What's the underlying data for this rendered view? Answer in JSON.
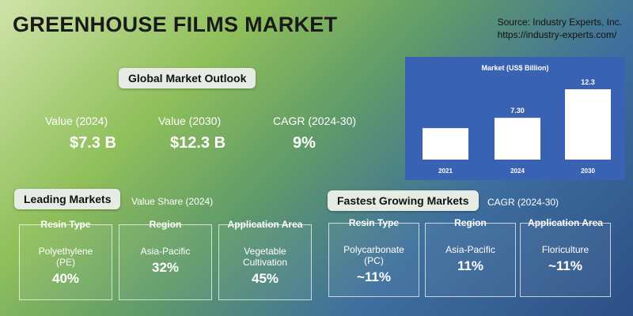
{
  "header": {
    "title": "GREENHOUSE FILMS MARKET",
    "source": "Source: Industry Experts, Inc.",
    "url": "https://industry-experts.com/"
  },
  "outlook": {
    "title": "Global Market Outlook",
    "items": [
      {
        "label": "Value (2024)",
        "value": "$7.3 B"
      },
      {
        "label": "Value (2030)",
        "value": "$12.3 B"
      },
      {
        "label": "CAGR (2024-30)",
        "value": "9%"
      }
    ]
  },
  "chart_data": {
    "type": "bar",
    "title": "Market (US$ Billion)",
    "categories": [
      "2021",
      "2024",
      "2030"
    ],
    "values": [
      5.5,
      7.3,
      12.3
    ],
    "value_labels": [
      null,
      "7.30",
      "12.3"
    ],
    "color": "#ffffff"
  },
  "leading": {
    "title": "Leading Markets",
    "subtitle": "Value Share (2024)",
    "cards": [
      {
        "heading": "Resin Type",
        "name": "Polyethylene (PE)",
        "value": "40%"
      },
      {
        "heading": "Region",
        "name": "Asia-Pacific",
        "value": "32%"
      },
      {
        "heading": "Application Area",
        "name": "Vegetable Cultivation",
        "value": "45%"
      }
    ]
  },
  "fastest": {
    "title": "Fastest Growing Markets",
    "subtitle": "CAGR (2024-30)",
    "cards": [
      {
        "heading": "Resin Type",
        "name": "Polycarbonate (PC)",
        "value": "~11%"
      },
      {
        "heading": "Region",
        "name": "Asia-Pacific",
        "value": "11%"
      },
      {
        "heading": "Application Area",
        "name": "Floriculture",
        "value": "~11%"
      }
    ]
  }
}
